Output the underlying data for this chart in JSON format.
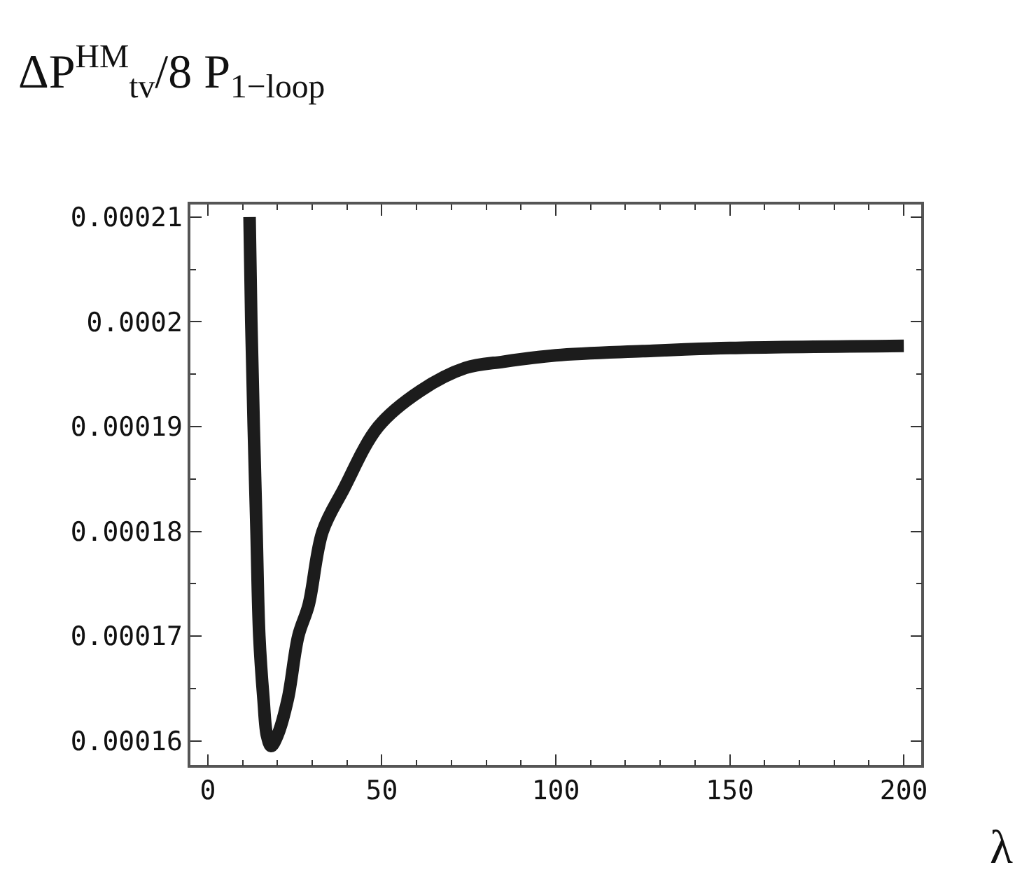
{
  "chart_data": {
    "type": "line",
    "ylabel": "ΔP$^{HM}$$_{tv}$/8 P$_{1−loop}$",
    "xlabel": "λ",
    "x": [
      12,
      12.5,
      13.2,
      14,
      14.8,
      16,
      17,
      18.2,
      20,
      23,
      26,
      29,
      33,
      39,
      49,
      61,
      74,
      85,
      100,
      125,
      150,
      200
    ],
    "series": [
      {
        "color": "#1c1c1c",
        "values": [
          0.00021,
          0.0002,
          0.00019,
          0.00018,
          0.00017,
          0.000164,
          0.0001605,
          0.0001595,
          0.0001605,
          0.000164,
          0.00017,
          0.000173,
          0.00018,
          0.000184,
          0.00019,
          0.0001934,
          0.0001956,
          0.0001962,
          0.0001968,
          0.0001972,
          0.0001975,
          0.0001977
        ]
      }
    ],
    "xlim": [
      -5,
      205
    ],
    "ylim": [
      0.0001577,
      0.0002112
    ],
    "xticks": [
      0,
      50,
      100,
      150,
      200
    ],
    "yticks": [
      0.00016,
      0.00017,
      0.00018,
      0.00019,
      0.0002,
      0.00021
    ],
    "grid": false,
    "marker": "none",
    "line_style": "solid"
  }
}
